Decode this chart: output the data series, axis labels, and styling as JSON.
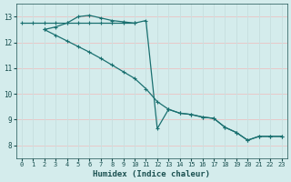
{
  "xlabel": "Humidex (Indice chaleur)",
  "bg_color": "#d4ecec",
  "line_color": "#1a7070",
  "grid_color_h": "#e8c8c8",
  "grid_color_v": "#c8e0e0",
  "xlim": [
    -0.5,
    23.5
  ],
  "ylim": [
    7.5,
    13.5
  ],
  "xticks": [
    0,
    1,
    2,
    3,
    4,
    5,
    6,
    7,
    8,
    9,
    10,
    11,
    12,
    13,
    14,
    15,
    16,
    17,
    18,
    19,
    20,
    21,
    22,
    23
  ],
  "yticks": [
    8,
    9,
    10,
    11,
    12,
    13
  ],
  "line1_x": [
    0,
    1,
    2,
    3,
    4,
    5,
    6,
    7,
    8,
    9,
    10
  ],
  "line1_y": [
    12.75,
    12.75,
    12.75,
    12.75,
    12.75,
    12.75,
    12.75,
    12.75,
    12.75,
    12.75,
    12.75
  ],
  "line2_x": [
    2,
    3,
    4,
    5,
    6,
    7,
    8,
    9,
    10,
    11,
    12,
    13,
    14,
    15,
    16,
    17,
    18,
    19,
    20,
    21,
    22,
    23
  ],
  "line2_y": [
    12.5,
    12.6,
    12.75,
    13.0,
    13.05,
    12.95,
    12.85,
    12.8,
    12.75,
    12.85,
    8.65,
    9.4,
    9.25,
    9.2,
    9.1,
    9.05,
    8.7,
    8.5,
    8.2,
    8.35,
    8.35,
    8.35
  ],
  "line3_x": [
    2,
    3,
    4,
    5,
    6,
    7,
    8,
    9,
    10,
    11,
    12,
    13,
    14,
    15,
    16,
    17,
    18,
    19,
    20,
    21,
    22,
    23
  ],
  "line3_y": [
    12.5,
    12.28,
    12.06,
    11.84,
    11.62,
    11.38,
    11.12,
    10.86,
    10.6,
    10.2,
    9.7,
    9.4,
    9.25,
    9.2,
    9.1,
    9.05,
    8.7,
    8.5,
    8.2,
    8.35,
    8.35,
    8.35
  ]
}
